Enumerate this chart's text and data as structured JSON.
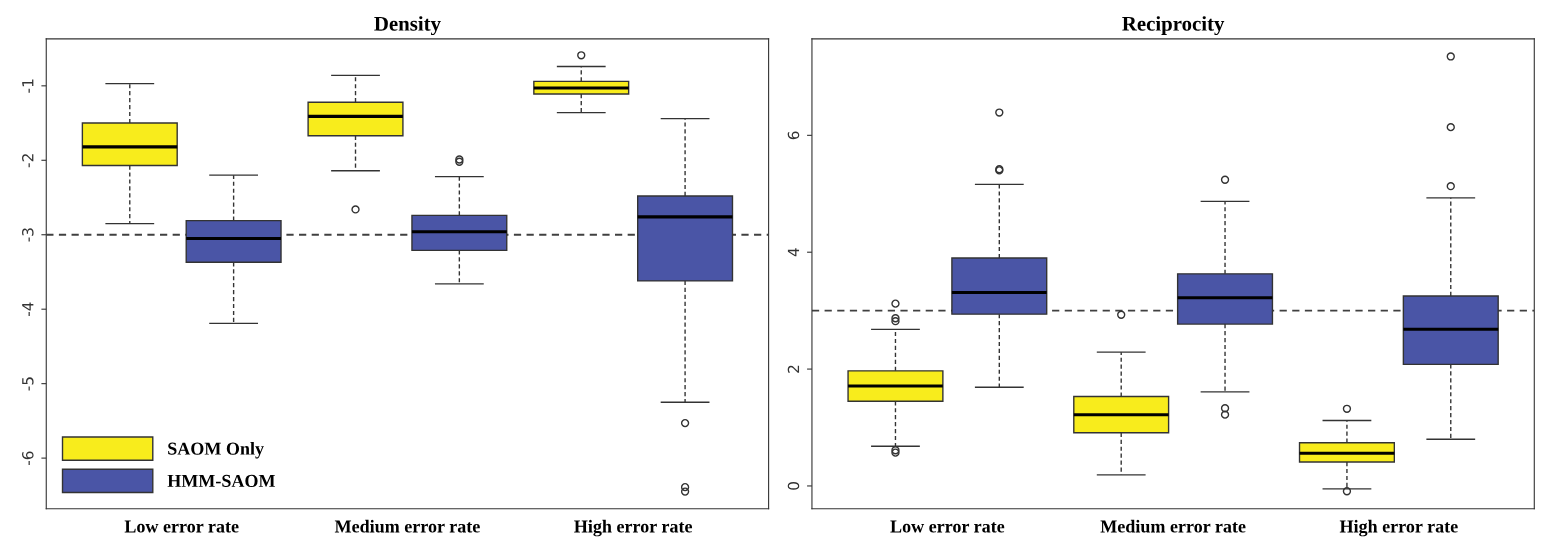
{
  "chart_data": [
    {
      "type": "box",
      "title": "Density",
      "categories": [
        "Low error rate",
        "Medium error rate",
        "High error rate"
      ],
      "ylim": [
        -6.68,
        -0.37
      ],
      "yticks": [
        -1,
        -2,
        -3,
        -4,
        -5,
        -6
      ],
      "grid": false,
      "legend": "bottom left",
      "ref_lines": [
        {
          "axis": "y",
          "value": -3,
          "line_style": "dashed",
          "color": "#404040"
        }
      ],
      "series": [
        {
          "name": "SAOM Only",
          "color": "#f8ec1c",
          "boxes": [
            {
              "low": -2.85,
              "q1": -2.07,
              "median": -1.82,
              "q3": -1.5,
              "high": -0.97
            },
            {
              "low": -2.14,
              "q1": -1.67,
              "median": -1.41,
              "q3": -1.22,
              "high": -0.86,
              "outliers": [
                -2.66
              ]
            },
            {
              "low": -1.36,
              "q1": -1.11,
              "median": -1.03,
              "q3": -0.94,
              "high": -0.74,
              "outliers": [
                -0.59
              ]
            }
          ]
        },
        {
          "name": "HMM-SAOM",
          "color": "#4a55a6",
          "boxes": [
            {
              "low": -4.19,
              "q1": -3.37,
              "median": -3.05,
              "q3": -2.81,
              "high": -2.2
            },
            {
              "low": -3.66,
              "q1": -3.21,
              "median": -2.96,
              "q3": -2.74,
              "high": -2.22,
              "outliers": [
                -1.99,
                -2.02
              ]
            },
            {
              "low": -5.25,
              "q1": -3.62,
              "median": -2.76,
              "q3": -2.48,
              "high": -1.44,
              "outliers": [
                -5.53,
                -6.39,
                -6.45
              ]
            }
          ]
        }
      ]
    },
    {
      "type": "box",
      "title": "Reciprocity",
      "categories": [
        "Low error rate",
        "Medium error rate",
        "High error rate"
      ],
      "ylim": [
        -0.39,
        7.65
      ],
      "yticks": [
        0,
        2,
        4,
        6
      ],
      "grid": false,
      "ref_lines": [
        {
          "axis": "y",
          "value": 3,
          "line_style": "dashed",
          "color": "#404040"
        }
      ],
      "series": [
        {
          "color": "#f8ec1c",
          "boxes": [
            {
              "low": 0.68,
              "q1": 1.45,
              "median": 1.71,
              "q3": 1.97,
              "high": 2.68,
              "outliers": [
                3.12,
                2.87,
                2.82,
                0.61,
                0.57
              ]
            },
            {
              "low": 0.19,
              "q1": 0.91,
              "median": 1.22,
              "q3": 1.53,
              "high": 2.29,
              "outliers": [
                2.93
              ]
            },
            {
              "low": -0.05,
              "q1": 0.41,
              "median": 0.56,
              "q3": 0.74,
              "high": 1.12,
              "outliers": [
                1.32,
                -0.09
              ]
            }
          ]
        },
        {
          "color": "#4a55a6",
          "boxes": [
            {
              "low": 1.69,
              "q1": 2.94,
              "median": 3.31,
              "q3": 3.9,
              "high": 5.16,
              "outliers": [
                6.39,
                5.42,
                5.4
              ]
            },
            {
              "low": 1.61,
              "q1": 2.77,
              "median": 3.22,
              "q3": 3.63,
              "high": 4.87,
              "outliers": [
                5.24,
                1.33,
                1.22
              ]
            },
            {
              "low": 0.8,
              "q1": 2.08,
              "median": 2.68,
              "q3": 3.25,
              "high": 4.93,
              "outliers": [
                7.35,
                6.14,
                5.13
              ]
            }
          ]
        }
      ]
    }
  ]
}
